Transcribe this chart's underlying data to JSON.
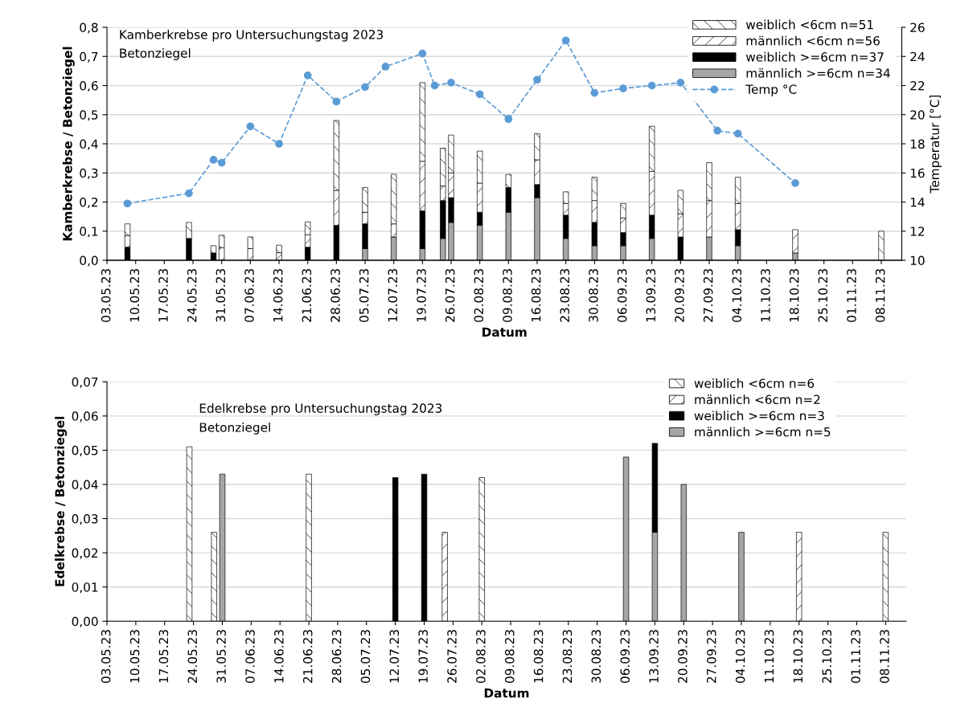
{
  "chart_data": [
    {
      "type": "bar",
      "stacked": true,
      "title": "Kamberkrebse pro Untersuchungstag 2023",
      "subtitle": "Betonziegel",
      "xlabel": "Datum",
      "ylabel": "Kamberkrebse / Betonziegel",
      "y2label": "Temperatur [°C]",
      "x": [
        "2023-05-08",
        "2023-05-23",
        "2023-05-29",
        "2023-05-31",
        "2023-06-07",
        "2023-06-14",
        "2023-06-21",
        "2023-06-28",
        "2023-07-05",
        "2023-07-12",
        "2023-07-19",
        "2023-07-24",
        "2023-07-26",
        "2023-08-02",
        "2023-08-09",
        "2023-08-16",
        "2023-08-23",
        "2023-08-30",
        "2023-09-06",
        "2023-09-13",
        "2023-09-20",
        "2023-09-27",
        "2023-10-04",
        "2023-10-18",
        "2023-11-08"
      ],
      "series": [
        {
          "name": "männlich >=6cm n=34",
          "color": "#a6a6a6",
          "values": [
            null,
            null,
            null,
            null,
            null,
            null,
            null,
            null,
            0.04,
            0.08,
            0.04,
            0.075,
            0.13,
            0.12,
            0.165,
            0.215,
            0.075,
            0.05,
            0.05,
            0.075,
            null,
            0.08,
            0.05,
            0.025,
            null
          ]
        },
        {
          "name": "weiblich >=6cm n=37",
          "color": "#000000",
          "values": [
            0.045,
            0.075,
            0.025,
            null,
            null,
            null,
            0.045,
            0.12,
            0.085,
            null,
            0.13,
            0.13,
            0.085,
            0.045,
            0.085,
            0.045,
            0.08,
            0.08,
            0.045,
            0.08,
            0.08,
            null,
            0.055,
            null,
            null
          ]
        },
        {
          "name": "männlich <6cm n=56",
          "color": "#ffffff",
          "values": [
            0.04,
            null,
            null,
            0.043,
            0.04,
            0.026,
            0.043,
            0.12,
            0.04,
            0.045,
            0.17,
            0.05,
            0.085,
            0.1,
            null,
            0.085,
            0.04,
            0.075,
            0.05,
            0.15,
            0.08,
            0.125,
            0.09,
            0.08,
            null
          ]
        },
        {
          "name": "weiblich <6cm n=51",
          "color": "#ffffff",
          "values": [
            0.04,
            0.055,
            0.025,
            0.043,
            0.04,
            0.026,
            0.044,
            0.24,
            0.085,
            0.17,
            0.27,
            0.13,
            0.13,
            0.11,
            0.045,
            0.09,
            0.04,
            0.08,
            0.05,
            0.155,
            0.08,
            0.13,
            0.09,
            null,
            0.1
          ]
        },
        {
          "name": "Temp °C",
          "type": "line",
          "axis": "y2",
          "color": "#5b9bd5",
          "marker": "circle",
          "line_style": "dashed",
          "x": [
            "2023-05-08",
            "2023-05-23",
            "2023-05-29",
            "2023-05-31",
            "2023-06-07",
            "2023-06-14",
            "2023-06-21",
            "2023-06-28",
            "2023-07-05",
            "2023-07-10",
            "2023-07-19",
            "2023-07-22",
            "2023-07-26",
            "2023-08-02",
            "2023-08-09",
            "2023-08-16",
            "2023-08-23",
            "2023-08-30",
            "2023-09-06",
            "2023-09-13",
            "2023-09-20",
            "2023-09-29",
            "2023-10-04",
            "2023-10-18"
          ],
          "values": [
            13.9,
            14.6,
            16.9,
            16.7,
            19.2,
            18.0,
            22.7,
            20.9,
            21.9,
            23.3,
            24.2,
            22.0,
            22.2,
            21.4,
            19.7,
            22.4,
            25.1,
            21.5,
            21.8,
            22.0,
            22.2,
            18.9,
            18.7,
            15.3
          ]
        }
      ],
      "xlim": [
        "2023-05-03",
        "2023-11-13"
      ],
      "xticks": [
        {
          "value": "2023-05-03",
          "label": "03.05.23"
        },
        {
          "value": "2023-05-10",
          "label": "10.05.23"
        },
        {
          "value": "2023-05-17",
          "label": "17.05.23"
        },
        {
          "value": "2023-05-24",
          "label": "24.05.23"
        },
        {
          "value": "2023-05-31",
          "label": "31.05.23"
        },
        {
          "value": "2023-06-07",
          "label": "07.06.23"
        },
        {
          "value": "2023-06-14",
          "label": "14.06.23"
        },
        {
          "value": "2023-06-21",
          "label": "21.06.23"
        },
        {
          "value": "2023-06-28",
          "label": "28.06.23"
        },
        {
          "value": "2023-07-05",
          "label": "05.07.23"
        },
        {
          "value": "2023-07-12",
          "label": "12.07.23"
        },
        {
          "value": "2023-07-19",
          "label": "19.07.23"
        },
        {
          "value": "2023-07-26",
          "label": "26.07.23"
        },
        {
          "value": "2023-08-02",
          "label": "02.08.23"
        },
        {
          "value": "2023-08-09",
          "label": "09.08.23"
        },
        {
          "value": "2023-08-16",
          "label": "16.08.23"
        },
        {
          "value": "2023-08-23",
          "label": "23.08.23"
        },
        {
          "value": "2023-08-30",
          "label": "30.08.23"
        },
        {
          "value": "2023-09-06",
          "label": "06.09.23"
        },
        {
          "value": "2023-09-13",
          "label": "13.09.23"
        },
        {
          "value": "2023-09-20",
          "label": "20.09.23"
        },
        {
          "value": "2023-09-27",
          "label": "27.09.23"
        },
        {
          "value": "2023-10-04",
          "label": "04.10.23"
        },
        {
          "value": "2023-10-11",
          "label": "11.10.23"
        },
        {
          "value": "2023-10-18",
          "label": "18.10.23"
        },
        {
          "value": "2023-10-25",
          "label": "25.10.23"
        },
        {
          "value": "2023-11-01",
          "label": "01.11.23"
        },
        {
          "value": "2023-11-08",
          "label": "08.11.23"
        }
      ],
      "ylim": [
        0,
        0.8
      ],
      "yticks": [
        {
          "value": 0,
          "label": "0,0"
        },
        {
          "value": 0.1,
          "label": "0,1"
        },
        {
          "value": 0.2,
          "label": "0,2"
        },
        {
          "value": 0.3,
          "label": "0,3"
        },
        {
          "value": 0.4,
          "label": "0,4"
        },
        {
          "value": 0.5,
          "label": "0,5"
        },
        {
          "value": 0.6,
          "label": "0,6"
        },
        {
          "value": 0.7,
          "label": "0,7"
        },
        {
          "value": 0.8,
          "label": "0,8"
        }
      ],
      "y2lim": [
        10,
        26
      ],
      "y2ticks": [
        10,
        12,
        14,
        16,
        18,
        20,
        22,
        24,
        26
      ],
      "grid": "y",
      "legend": "top right"
    },
    {
      "type": "bar",
      "stacked": true,
      "title": "Edelkrebse pro Untersuchungstag 2023",
      "subtitle": "Betonziegel",
      "xlabel": "Datum",
      "ylabel": "Edelkrebse / Betonziegel",
      "x": [
        "2023-05-23",
        "2023-05-29",
        "2023-05-31",
        "2023-06-21",
        "2023-07-12",
        "2023-07-19",
        "2023-07-24",
        "2023-08-02",
        "2023-09-06",
        "2023-09-13",
        "2023-09-20",
        "2023-10-04",
        "2023-10-18",
        "2023-11-08"
      ],
      "series": [
        {
          "name": "männlich >=6cm n=5",
          "color": "#a6a6a6",
          "values": [
            null,
            null,
            0.043,
            null,
            null,
            null,
            null,
            null,
            0.048,
            0.026,
            0.04,
            0.026,
            null,
            null
          ]
        },
        {
          "name": "weiblich >=6cm n=3",
          "color": "#000000",
          "values": [
            null,
            null,
            null,
            null,
            0.042,
            0.043,
            null,
            null,
            null,
            0.026,
            null,
            null,
            null,
            null
          ]
        },
        {
          "name": "männlich <6cm n=2",
          "color": "#ffffff",
          "values": [
            null,
            null,
            null,
            null,
            null,
            null,
            0.026,
            null,
            null,
            null,
            null,
            null,
            0.026,
            null
          ]
        },
        {
          "name": "weiblich <6cm n=6",
          "color": "#ffffff",
          "values": [
            0.051,
            0.026,
            null,
            0.043,
            null,
            null,
            null,
            0.042,
            null,
            null,
            null,
            null,
            null,
            0.026
          ]
        }
      ],
      "xlim": [
        "2023-05-03",
        "2023-11-13"
      ],
      "xticks": [
        {
          "value": "2023-05-03",
          "label": "03.05.23"
        },
        {
          "value": "2023-05-10",
          "label": "10.05.23"
        },
        {
          "value": "2023-05-17",
          "label": "17.05.23"
        },
        {
          "value": "2023-05-24",
          "label": "24.05.23"
        },
        {
          "value": "2023-05-31",
          "label": "31.05.23"
        },
        {
          "value": "2023-06-07",
          "label": "07.06.23"
        },
        {
          "value": "2023-06-14",
          "label": "14.06.23"
        },
        {
          "value": "2023-06-21",
          "label": "21.06.23"
        },
        {
          "value": "2023-06-28",
          "label": "28.06.23"
        },
        {
          "value": "2023-07-05",
          "label": "05.07.23"
        },
        {
          "value": "2023-07-12",
          "label": "12.07.23"
        },
        {
          "value": "2023-07-19",
          "label": "19.07.23"
        },
        {
          "value": "2023-07-26",
          "label": "26.07.23"
        },
        {
          "value": "2023-08-02",
          "label": "02.08.23"
        },
        {
          "value": "2023-08-09",
          "label": "09.08.23"
        },
        {
          "value": "2023-08-16",
          "label": "16.08.23"
        },
        {
          "value": "2023-08-23",
          "label": "23.08.23"
        },
        {
          "value": "2023-08-30",
          "label": "30.08.23"
        },
        {
          "value": "2023-09-06",
          "label": "06.09.23"
        },
        {
          "value": "2023-09-13",
          "label": "13.09.23"
        },
        {
          "value": "2023-09-20",
          "label": "20.09.23"
        },
        {
          "value": "2023-09-27",
          "label": "27.09.23"
        },
        {
          "value": "2023-10-04",
          "label": "04.10.23"
        },
        {
          "value": "2023-10-11",
          "label": "11.10.23"
        },
        {
          "value": "2023-10-18",
          "label": "18.10.23"
        },
        {
          "value": "2023-10-25",
          "label": "25.10.23"
        },
        {
          "value": "2023-11-01",
          "label": "01.11.23"
        },
        {
          "value": "2023-11-08",
          "label": "08.11.23"
        }
      ],
      "ylim": [
        0,
        0.07
      ],
      "yticks": [
        {
          "value": 0,
          "label": "0,00"
        },
        {
          "value": 0.01,
          "label": "0,01"
        },
        {
          "value": 0.02,
          "label": "0,02"
        },
        {
          "value": 0.03,
          "label": "0,03"
        },
        {
          "value": 0.04,
          "label": "0,04"
        },
        {
          "value": 0.05,
          "label": "0,05"
        },
        {
          "value": 0.06,
          "label": "0,06"
        },
        {
          "value": 0.07,
          "label": "0,07"
        }
      ],
      "grid": "y",
      "legend": "top right"
    }
  ]
}
